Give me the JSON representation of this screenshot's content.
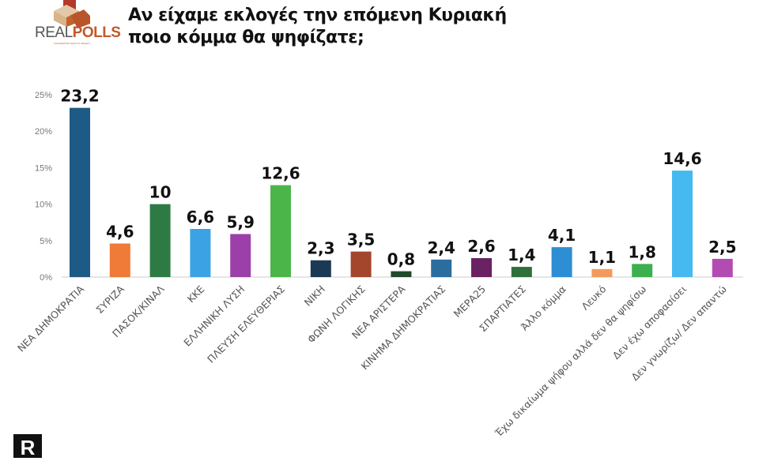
{
  "header": {
    "title_line1": "Αν είχαμε εκλογές την επόμενη Κυριακή",
    "title_line2": "ποιο κόμμα θα ψηφίζατε;",
    "logo_text_light": "REAL",
    "logo_text_bold": "POLLS",
    "logo_tagline": "CONVERTING DATA TO INSIGHT",
    "corner_mark": "R"
  },
  "chart_data": {
    "type": "bar",
    "title": "Αν είχαμε εκλογές την επόμενη Κυριακή ποιο κόμμα θα ψηφίζατε;",
    "xlabel": "",
    "ylabel": "",
    "ylim": [
      0,
      25
    ],
    "yticks": [
      "0%",
      "5%",
      "10%",
      "15%",
      "20%",
      "25%"
    ],
    "grid": false,
    "categories": [
      "ΝΕΑ ΔΗΜΟΚΡΑΤΙΑ",
      "ΣΥΡΙΖΑ",
      "ΠΑΣΟΚ/ΚΙΝΑΛ",
      "ΚΚΕ",
      "ΕΛΛΗΝΙΚΗ ΛΥΣΗ",
      "ΠΛΕΥΣΗ ΕΛΕΥΘΕΡΙΑΣ",
      "ΝΙΚΗ",
      "ΦΩΝΗ ΛΟΓΙΚΗΣ",
      "ΝΕΑ ΑΡΙΣΤΕΡΑ",
      "ΚΙΝΗΜΑ ΔΗΜΟΚΡΑΤΙΑΣ",
      "ΜΕΡΑ25",
      "ΣΠΑΡΤΙΑΤΕΣ",
      "Άλλο κόμμα",
      "Λευκό",
      "Έχω δικαίωμα ψήφου αλλά δεν θα ψηφίσω",
      "Δεν έχω αποφασίσει",
      "Δεν γνωρίζω/ Δεν απαντώ"
    ],
    "values": [
      23.2,
      4.6,
      10,
      6.6,
      5.9,
      12.6,
      2.3,
      3.5,
      0.8,
      2.4,
      2.6,
      1.4,
      4.1,
      1.1,
      1.8,
      14.6,
      2.5
    ],
    "value_labels": [
      "23,2",
      "4,6",
      "10",
      "6,6",
      "5,9",
      "12,6",
      "2,3",
      "3,5",
      "0,8",
      "2,4",
      "2,6",
      "1,4",
      "4,1",
      "1,1",
      "1,8",
      "14,6",
      "2,5"
    ],
    "colors": [
      "#1e5a86",
      "#f07a38",
      "#2d7a45",
      "#3ba3e3",
      "#9c3fa8",
      "#4cb54a",
      "#1b3954",
      "#a4462c",
      "#1f4a2b",
      "#2b6d9f",
      "#6b2262",
      "#2f6f3c",
      "#2d8ed3",
      "#f29a5c",
      "#3cb04f",
      "#45b9f0",
      "#b24cb3"
    ]
  }
}
